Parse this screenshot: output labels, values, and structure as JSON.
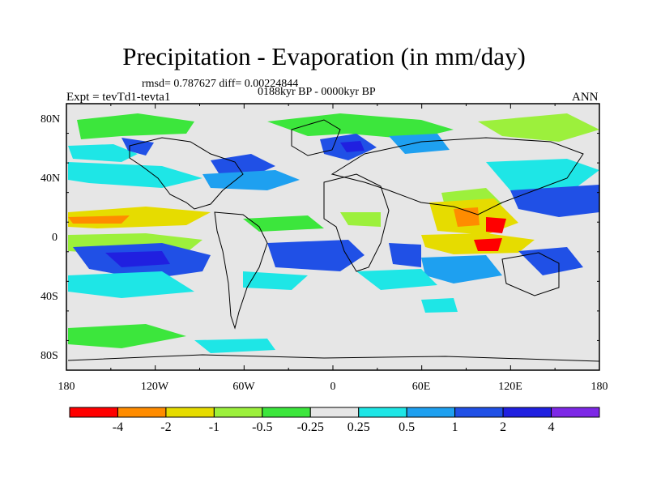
{
  "title": "Precipitation - Evaporation (in mm/day)",
  "stats_line": "rmsd= 0.787627 diff= 0.00224844",
  "period": "0188kyr BP - 0000kyr BP",
  "experiment": "Expt = tevTd1-tevta1",
  "season": "ANN",
  "map": {
    "lat_labels": [
      "80N",
      "40N",
      "0",
      "40S",
      "80S"
    ],
    "lon_labels": [
      "180",
      "120W",
      "60W",
      "0",
      "60E",
      "120E",
      "180"
    ]
  },
  "colorbar": {
    "labels": [
      "-4",
      "-2",
      "-1",
      "-0.5",
      "-0.25",
      "0.25",
      "0.5",
      "1",
      "2",
      "4"
    ],
    "colors": [
      "#ff0000",
      "#ff8c00",
      "#e6dc00",
      "#9cf03c",
      "#3ce63c",
      "#e6e6e6",
      "#1ee6e6",
      "#1ea0f0",
      "#2050e6",
      "#2020e0",
      "#7d28e6"
    ]
  }
}
